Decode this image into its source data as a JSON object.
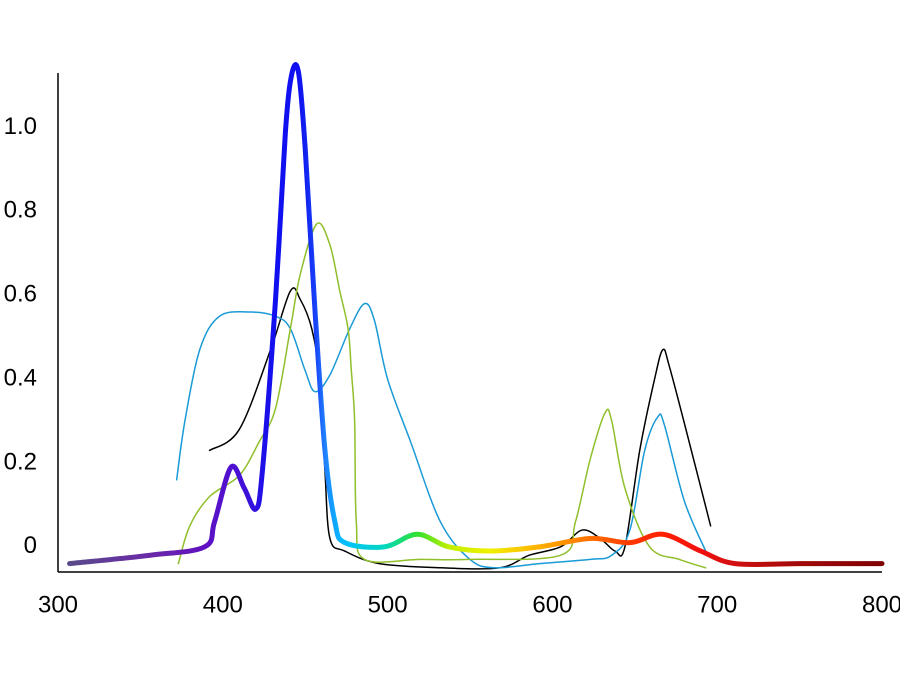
{
  "chart_data": {
    "type": "line",
    "xlim": [
      300,
      800
    ],
    "xticks": [
      300,
      400,
      500,
      600,
      700,
      800
    ],
    "ylim": [
      -0.06,
      1.13
    ],
    "yticks": [
      0,
      0.2,
      0.4,
      0.6,
      0.8,
      {
        "value": 1,
        "label": "1.0"
      }
    ],
    "grid": false,
    "series": [
      {
        "color": "#000000",
        "width": 1.5,
        "x": [
          392,
          410,
          429,
          441,
          447,
          454,
          459,
          462,
          465,
          474,
          495,
          532,
          568,
          586,
          605,
          618,
          629,
          638,
          644,
          653,
          662,
          667,
          671,
          683,
          696
        ],
        "values": [
          0.23,
          0.28,
          0.47,
          0.61,
          0.59,
          0.52,
          0.4,
          0.18,
          0.02,
          -0.01,
          -0.04,
          -0.05,
          -0.05,
          -0.02,
          0.0,
          0.04,
          0.02,
          -0.01,
          0.0,
          0.23,
          0.4,
          0.47,
          0.43,
          0.25,
          0.05
        ]
      },
      {
        "color": "#1a9ad6",
        "width": 1.5,
        "x": [
          372,
          377,
          386,
          398,
          417,
          432,
          441,
          450,
          456,
          465,
          477,
          486,
          492,
          500,
          514,
          532,
          550,
          565,
          592,
          623,
          636,
          647,
          656,
          664,
          668,
          680,
          693
        ],
        "values": [
          0.16,
          0.3,
          0.47,
          0.55,
          0.56,
          0.55,
          0.52,
          0.42,
          0.37,
          0.41,
          0.52,
          0.58,
          0.54,
          0.4,
          0.25,
          0.06,
          -0.03,
          -0.05,
          -0.04,
          -0.03,
          -0.02,
          0.04,
          0.23,
          0.31,
          0.29,
          0.11,
          -0.01
        ]
      },
      {
        "color": "#8fbf2a",
        "width": 1.5,
        "x": [
          373,
          380,
          392,
          410,
          422,
          432,
          441,
          447,
          457,
          465,
          471,
          476,
          478,
          480,
          481,
          486,
          520,
          550,
          605,
          614,
          623,
          632,
          636,
          644,
          659,
          677,
          693
        ],
        "values": [
          -0.04,
          0.05,
          0.12,
          0.17,
          0.25,
          0.33,
          0.52,
          0.65,
          0.77,
          0.72,
          0.61,
          0.52,
          0.42,
          0.3,
          0.06,
          -0.03,
          -0.03,
          -0.03,
          -0.02,
          0.06,
          0.21,
          0.32,
          0.3,
          0.14,
          0.0,
          -0.03,
          -0.05
        ]
      },
      {
        "color": "#1010f0",
        "width": 5,
        "x": [
          307,
          356,
          389,
          395,
          405,
          413,
          420,
          424,
          432,
          438,
          442,
          446,
          450,
          456,
          462,
          468,
          474,
          498,
          518,
          537,
          562,
          592,
          623,
          647,
          667,
          690,
          711,
          750,
          800
        ],
        "values": [
          -0.04,
          -0.02,
          0.0,
          0.06,
          0.19,
          0.14,
          0.09,
          0.18,
          0.59,
          0.99,
          1.13,
          1.13,
          0.95,
          0.56,
          0.23,
          0.06,
          0.01,
          0.0,
          0.03,
          0.0,
          -0.01,
          0.0,
          0.02,
          0.01,
          0.03,
          -0.01,
          -0.04,
          -0.04,
          -0.04
        ],
        "colors": [
          "#5a4a8a",
          "#6a2aa8",
          "#6010c0",
          "#5812c8",
          "#5010d0",
          "#4010d8",
          "#3010e0",
          "#2010e8",
          "#1010f0",
          "#1010f0",
          "#1010f0",
          "#1010f0",
          "#1020f0",
          "#1840f8",
          "#2080ff",
          "#10a8ff",
          "#00c0ff",
          "#00d8c0",
          "#30e030",
          "#c0f000",
          "#f0f000",
          "#ffb000",
          "#ff7000",
          "#ff3800",
          "#ff2000",
          "#f01010",
          "#d01010",
          "#a00808",
          "#800000"
        ]
      }
    ]
  }
}
